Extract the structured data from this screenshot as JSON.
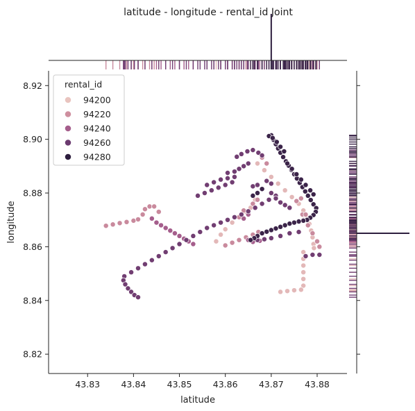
{
  "chart_data": {
    "type": "scatter",
    "title": "latitude - longitude - rental_id Joint",
    "xlabel": "latitude",
    "ylabel": "longitude",
    "xlim": [
      43.8215,
      43.8865
    ],
    "ylim": [
      8.8128,
      8.9255
    ],
    "xticks": [
      "43.83",
      "43.84",
      "43.85",
      "43.86",
      "43.87",
      "43.88"
    ],
    "xtick_values": [
      43.83,
      43.84,
      43.85,
      43.86,
      43.87,
      43.88
    ],
    "yticks": [
      "8.82",
      "8.84",
      "8.86",
      "8.88",
      "8.90",
      "8.92"
    ],
    "ytick_values": [
      8.82,
      8.84,
      8.86,
      8.88,
      8.9,
      8.92
    ],
    "grid": false,
    "legend": {
      "title": "rental_id",
      "placement": "top-left",
      "entries": [
        "94200",
        "94220",
        "94240",
        "94260",
        "94280"
      ]
    },
    "hue_range": [
      94195,
      94285
    ],
    "colors": {
      "94200": "#e9c4bf",
      "94220": "#ce8f9f",
      "94240": "#a55e8c",
      "94260": "#6b3a6f",
      "94280": "#2d1e3e"
    },
    "series": [
      {
        "hue": 94200,
        "points": [
          [
            43.867,
            8.891
          ],
          [
            43.8685,
            8.8885
          ],
          [
            43.87,
            8.886
          ],
          [
            43.8715,
            8.8835
          ],
          [
            43.873,
            8.881
          ],
          [
            43.8745,
            8.8785
          ],
          [
            43.876,
            8.876
          ],
          [
            43.877,
            8.8735
          ],
          [
            43.8778,
            8.871
          ],
          [
            43.8783,
            8.8685
          ],
          [
            43.8787,
            8.866
          ],
          [
            43.879,
            8.8635
          ],
          [
            43.8792,
            8.861
          ],
          [
            43.8793,
            8.8595
          ],
          [
            43.877,
            8.858
          ],
          [
            43.877,
            8.8555
          ],
          [
            43.877,
            8.853
          ],
          [
            43.877,
            8.8505
          ],
          [
            43.877,
            8.848
          ],
          [
            43.877,
            8.8455
          ],
          [
            43.8765,
            8.844
          ],
          [
            43.875,
            8.8438
          ],
          [
            43.8735,
            8.8435
          ],
          [
            43.872,
            8.8432
          ],
          [
            43.858,
            8.862
          ],
          [
            43.859,
            8.8645
          ],
          [
            43.86,
            8.8665
          ],
          [
            43.8615,
            8.869
          ],
          [
            43.863,
            8.871
          ],
          [
            43.8645,
            8.873
          ],
          [
            43.8655,
            8.8745
          ],
          [
            43.866,
            8.876
          ],
          [
            43.8665,
            8.8775
          ]
        ]
      },
      {
        "hue": 94220,
        "points": [
          [
            43.834,
            8.8678
          ],
          [
            43.8355,
            8.8683
          ],
          [
            43.837,
            8.8688
          ],
          [
            43.8385,
            8.8692
          ],
          [
            43.84,
            8.8697
          ],
          [
            43.841,
            8.8702
          ],
          [
            43.842,
            8.872
          ],
          [
            43.8425,
            8.874
          ],
          [
            43.8435,
            8.875
          ],
          [
            43.8445,
            8.875
          ],
          [
            43.8455,
            8.873
          ],
          [
            43.86,
            8.8605
          ],
          [
            43.8615,
            8.8615
          ],
          [
            43.863,
            8.8625
          ],
          [
            43.8645,
            8.8635
          ],
          [
            43.866,
            8.8645
          ],
          [
            43.8672,
            8.8655
          ],
          [
            43.863,
            8.871
          ],
          [
            43.864,
            8.8735
          ],
          [
            43.866,
            8.876
          ],
          [
            43.867,
            8.8775
          ],
          [
            43.8768,
            8.872
          ],
          [
            43.877,
            8.87
          ],
          [
            43.8775,
            8.872
          ],
          [
            43.878,
            8.868
          ],
          [
            43.879,
            8.865
          ],
          [
            43.88,
            8.862
          ],
          [
            43.8805,
            8.86
          ],
          [
            43.8755,
            8.877
          ],
          [
            43.8765,
            8.878
          ],
          [
            43.868,
            8.8932
          ],
          [
            43.869,
            8.891
          ]
        ]
      },
      {
        "hue": 94240,
        "points": [
          [
            43.844,
            8.8705
          ],
          [
            43.845,
            8.869
          ],
          [
            43.846,
            8.868
          ],
          [
            43.847,
            8.867
          ],
          [
            43.848,
            8.866
          ],
          [
            43.849,
            8.865
          ],
          [
            43.85,
            8.864
          ],
          [
            43.851,
            8.863
          ],
          [
            43.852,
            8.862
          ],
          [
            43.853,
            8.861
          ],
          [
            43.865,
            8.8625
          ],
          [
            43.866,
            8.8618
          ],
          [
            43.8675,
            8.8622
          ],
          [
            43.864,
            8.8705
          ],
          [
            43.865,
            8.872
          ]
        ]
      },
      {
        "hue": 94260,
        "points": [
          [
            43.838,
            8.849
          ],
          [
            43.8395,
            8.8505
          ],
          [
            43.841,
            8.852
          ],
          [
            43.8425,
            8.8535
          ],
          [
            43.844,
            8.855
          ],
          [
            43.8455,
            8.8565
          ],
          [
            43.847,
            8.858
          ],
          [
            43.8485,
            8.8595
          ],
          [
            43.85,
            8.861
          ],
          [
            43.8515,
            8.8625
          ],
          [
            43.853,
            8.864
          ],
          [
            43.8545,
            8.8655
          ],
          [
            43.856,
            8.867
          ],
          [
            43.8575,
            8.868
          ],
          [
            43.859,
            8.869
          ],
          [
            43.8605,
            8.87
          ],
          [
            43.862,
            8.871
          ],
          [
            43.8635,
            8.872
          ],
          [
            43.865,
            8.8732
          ],
          [
            43.8665,
            8.8745
          ],
          [
            43.868,
            8.876
          ],
          [
            43.8695,
            8.8775
          ],
          [
            43.871,
            8.879
          ],
          [
            43.8378,
            8.8475
          ],
          [
            43.8382,
            8.846
          ],
          [
            43.8388,
            8.8445
          ],
          [
            43.8395,
            8.8432
          ],
          [
            43.8402,
            8.842
          ],
          [
            43.841,
            8.8412
          ],
          [
            43.8625,
            8.8935
          ],
          [
            43.8635,
            8.8945
          ],
          [
            43.8648,
            8.8955
          ],
          [
            43.866,
            8.896
          ],
          [
            43.8672,
            8.895
          ],
          [
            43.8605,
            8.8875
          ],
          [
            43.862,
            8.888
          ],
          [
            43.863,
            8.889
          ],
          [
            43.864,
            8.89
          ],
          [
            43.865,
            8.891
          ],
          [
            43.856,
            8.883
          ],
          [
            43.8575,
            8.884
          ],
          [
            43.859,
            8.885
          ],
          [
            43.8605,
            8.8855
          ],
          [
            43.862,
            8.886
          ],
          [
            43.854,
            8.879
          ],
          [
            43.8555,
            8.88
          ],
          [
            43.857,
            8.881
          ],
          [
            43.8585,
            8.882
          ],
          [
            43.86,
            8.883
          ],
          [
            43.8615,
            8.884
          ],
          [
            43.866,
            8.8825
          ],
          [
            43.867,
            8.883
          ],
          [
            43.869,
            8.8845
          ],
          [
            43.87,
            8.8835
          ],
          [
            43.868,
            8.894
          ],
          [
            43.87,
            8.88
          ],
          [
            43.871,
            8.878
          ],
          [
            43.872,
            8.8765
          ],
          [
            43.873,
            8.8755
          ],
          [
            43.874,
            8.8745
          ],
          [
            43.867,
            8.8625
          ],
          [
            43.8685,
            8.8628
          ],
          [
            43.87,
            8.8632
          ],
          [
            43.872,
            8.864
          ],
          [
            43.874,
            8.865
          ],
          [
            43.876,
            8.8655
          ],
          [
            43.8775,
            8.8565
          ],
          [
            43.879,
            8.857
          ],
          [
            43.8805,
            8.857
          ]
        ]
      },
      {
        "hue": 94280,
        "points": [
          [
            43.87,
            8.9015
          ],
          [
            43.8705,
            8.8998
          ],
          [
            43.871,
            8.8982
          ],
          [
            43.8715,
            8.8966
          ],
          [
            43.872,
            8.895
          ],
          [
            43.8726,
            8.8934
          ],
          [
            43.8732,
            8.8918
          ],
          [
            43.8738,
            8.8902
          ],
          [
            43.8744,
            8.8886
          ],
          [
            43.875,
            8.887
          ],
          [
            43.8756,
            8.8854
          ],
          [
            43.8762,
            8.8838
          ],
          [
            43.8768,
            8.8822
          ],
          [
            43.8774,
            8.8806
          ],
          [
            43.878,
            8.879
          ],
          [
            43.8786,
            8.8774
          ],
          [
            43.8792,
            8.8758
          ],
          [
            43.8798,
            8.8744
          ],
          [
            43.8797,
            8.873
          ],
          [
            43.8792,
            8.8718
          ],
          [
            43.8785,
            8.8708
          ],
          [
            43.8778,
            8.87
          ],
          [
            43.877,
            8.8697
          ],
          [
            43.876,
            8.8694
          ],
          [
            43.875,
            8.869
          ],
          [
            43.874,
            8.8686
          ],
          [
            43.873,
            8.868
          ],
          [
            43.872,
            8.8674
          ],
          [
            43.871,
            8.8668
          ],
          [
            43.87,
            8.8662
          ],
          [
            43.869,
            8.8656
          ],
          [
            43.868,
            8.865
          ],
          [
            43.867,
            8.864
          ],
          [
            43.8663,
            8.8632
          ],
          [
            43.8655,
            8.8625
          ],
          [
            43.8735,
            8.891
          ],
          [
            43.8745,
            8.889
          ],
          [
            43.8755,
            8.887
          ],
          [
            43.8765,
            8.885
          ],
          [
            43.8775,
            8.883
          ],
          [
            43.8785,
            8.881
          ],
          [
            43.8792,
            8.8795
          ],
          [
            43.8695,
            8.9012
          ],
          [
            43.8703,
            8.9005
          ],
          [
            43.8712,
            8.899
          ],
          [
            43.872,
            8.8972
          ],
          [
            43.8728,
            8.8955
          ],
          [
            43.866,
            8.879
          ],
          [
            43.867,
            8.88
          ],
          [
            43.868,
            8.8815
          ]
        ]
      }
    ]
  }
}
